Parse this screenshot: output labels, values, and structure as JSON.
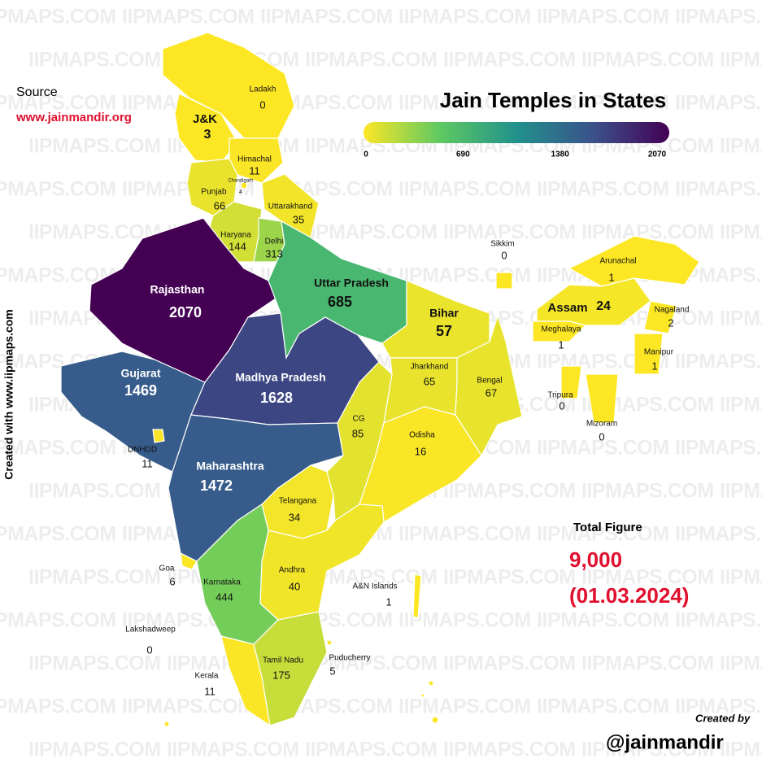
{
  "title": "Jain Temples in States",
  "source_label": "Source",
  "source_url": "www.jainmandir.org",
  "created_with": "Created with www.iipmaps.com",
  "watermark": "IIPMAPS.COM",
  "colorbar": {
    "lim": [
      0,
      2070
    ],
    "ticks": [
      0,
      690,
      1380,
      2070
    ],
    "colors": [
      "#fde725",
      "#5ec962",
      "#21918c",
      "#3b528b",
      "#440154"
    ]
  },
  "regions": [
    {
      "name": "Ladakh",
      "value": 0
    },
    {
      "name": "J&K",
      "value": 3
    },
    {
      "name": "Himachal",
      "value": 11
    },
    {
      "name": "Chandigarh",
      "value": 4
    },
    {
      "name": "Punjab",
      "value": 66
    },
    {
      "name": "Uttarakhand",
      "value": 35
    },
    {
      "name": "Haryana",
      "value": 144
    },
    {
      "name": "Delhi",
      "value": 313
    },
    {
      "name": "Rajasthan",
      "value": 2070
    },
    {
      "name": "Uttar Pradesh",
      "value": 685
    },
    {
      "name": "Gujarat",
      "value": 1469
    },
    {
      "name": "Madhya Pradesh",
      "value": 1628
    },
    {
      "name": "DNHDD",
      "value": 11
    },
    {
      "name": "Maharashtra",
      "value": 1472
    },
    {
      "name": "CG",
      "value": 85
    },
    {
      "name": "Bihar",
      "value": 57
    },
    {
      "name": "Jharkhand",
      "value": 65
    },
    {
      "name": "Bengal",
      "value": 67
    },
    {
      "name": "Odisha",
      "value": 16
    },
    {
      "name": "Telangana",
      "value": 34
    },
    {
      "name": "Andhra",
      "value": 40
    },
    {
      "name": "Goa",
      "value": 6
    },
    {
      "name": "Karnataka",
      "value": 444
    },
    {
      "name": "Lakshadweep",
      "value": 0
    },
    {
      "name": "Kerala",
      "value": 11
    },
    {
      "name": "Tamil Nadu",
      "value": 175
    },
    {
      "name": "Puducherry",
      "value": 5
    },
    {
      "name": "A&N Islands",
      "value": 1
    },
    {
      "name": "Sikkim",
      "value": 0
    },
    {
      "name": "Arunachal",
      "value": 1
    },
    {
      "name": "Assam",
      "value": 24
    },
    {
      "name": "Meghalaya",
      "value": 1
    },
    {
      "name": "Nagaland",
      "value": 2
    },
    {
      "name": "Manipur",
      "value": 1
    },
    {
      "name": "Tripura",
      "value": 0
    },
    {
      "name": "Mizoram",
      "value": 0
    }
  ],
  "total_label": "Total Figure",
  "total_value": "9,000",
  "total_date": "(01.03.2024)",
  "created_by": "Created by",
  "handle": "@jainmandir"
}
